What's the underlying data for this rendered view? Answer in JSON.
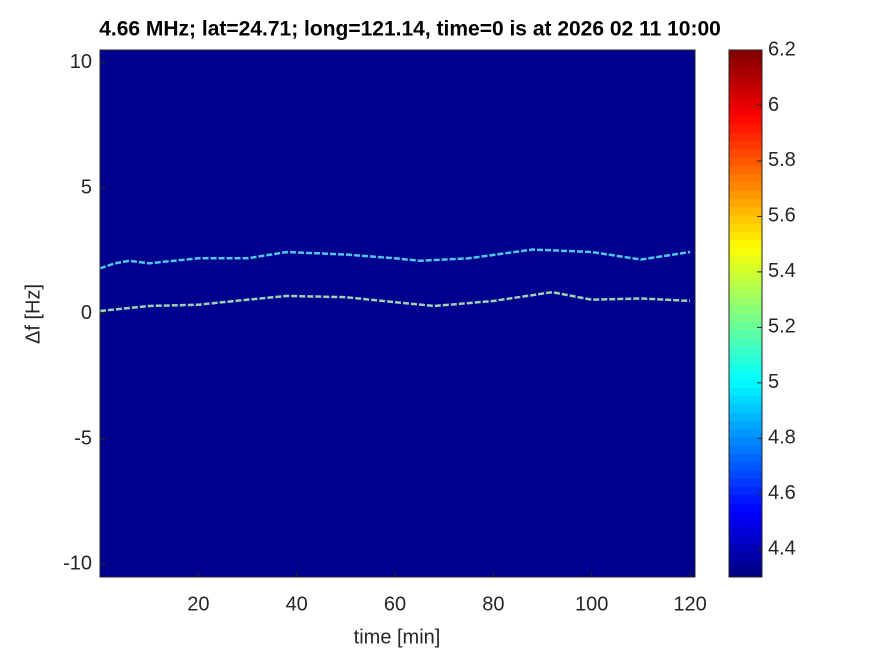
{
  "chart_data": {
    "type": "heatmap",
    "title": "4.66 MHz;  lat=24.71; long=121.14, time=0 is at 2026 02 11 10:00",
    "x_label": "time [min]",
    "y_label": "Δf [Hz]",
    "xlim": [
      0,
      121
    ],
    "xticks": [
      20,
      40,
      60,
      80,
      100,
      120
    ],
    "ylim": [
      -10.5,
      10.5
    ],
    "yticks": [
      -10,
      -5,
      0,
      5,
      10
    ],
    "background_color": "#00008f",
    "colormap": "jet",
    "clim": [
      4.3,
      6.2
    ],
    "cticks": [
      4.4,
      4.6,
      4.8,
      5,
      5.2,
      5.4,
      5.6,
      5.8,
      6,
      6.2
    ],
    "series": [
      {
        "color": "#4fc8e8",
        "x": [
          0,
          3,
          6,
          10,
          20,
          30,
          38,
          50,
          60,
          65,
          75,
          88,
          100,
          110,
          120
        ],
        "values": [
          1.8,
          2.0,
          2.1,
          2.0,
          2.2,
          2.2,
          2.45,
          2.35,
          2.2,
          2.1,
          2.2,
          2.55,
          2.45,
          2.15,
          2.45
        ]
      },
      {
        "color": "#9fd2b0",
        "x": [
          0,
          10,
          20,
          30,
          38,
          50,
          60,
          68,
          80,
          92,
          100,
          110,
          120
        ],
        "values": [
          0.1,
          0.3,
          0.35,
          0.55,
          0.7,
          0.65,
          0.45,
          0.3,
          0.5,
          0.85,
          0.55,
          0.6,
          0.5
        ]
      }
    ]
  }
}
